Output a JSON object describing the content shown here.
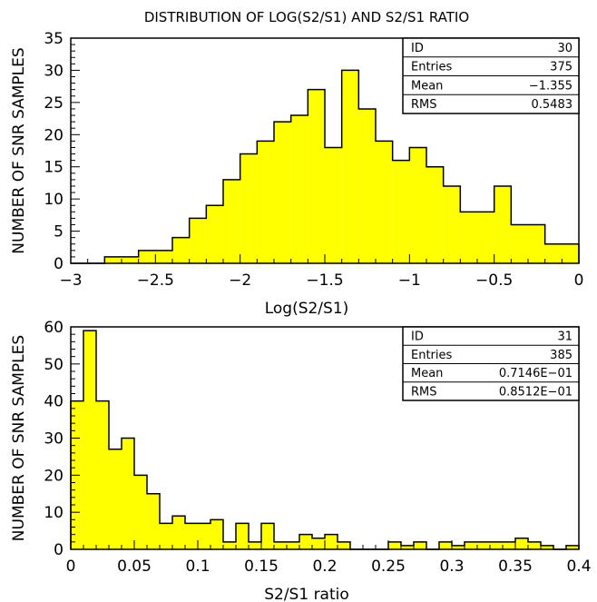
{
  "title": "DISTRIBUTION OF LOG(S2/S1) AND S2/S1 RATIO",
  "colors": {
    "fill": "#ffff00",
    "stroke": "#000000",
    "background": "#ffffff"
  },
  "chart_data": [
    {
      "type": "histogram",
      "xlabel": "Log(S2/S1)",
      "ylabel": "NUMBER OF SNR SAMPLES",
      "xlim": [
        -3,
        0
      ],
      "ylim": [
        0,
        35
      ],
      "x_ticks": [
        -3,
        -2.5,
        -2,
        -1.5,
        -1,
        -0.5,
        0
      ],
      "x_tick_labels": [
        "−3",
        "−2.5",
        "−2",
        "−1.5",
        "−1",
        "−0.5",
        "0"
      ],
      "y_ticks": [
        0,
        5,
        10,
        15,
        20,
        25,
        30,
        35
      ],
      "y_tick_labels": [
        "0",
        "5",
        "10",
        "15",
        "20",
        "25",
        "30",
        "35"
      ],
      "bin_edges_start": -3.0,
      "bin_width": 0.1,
      "counts": [
        0,
        0,
        1,
        1,
        2,
        2,
        4,
        7,
        9,
        13,
        17,
        19,
        22,
        23,
        27,
        18,
        30,
        24,
        19,
        16,
        18,
        15,
        12,
        8,
        8,
        12,
        6,
        6,
        3,
        3
      ],
      "stats": [
        {
          "label": "ID",
          "value": "30"
        },
        {
          "label": "Entries",
          "value": "375"
        },
        {
          "label": "Mean",
          "value": "−1.355"
        },
        {
          "label": "RMS",
          "value": "0.5483"
        }
      ]
    },
    {
      "type": "histogram",
      "xlabel": "S2/S1 ratio",
      "ylabel": "NUMBER OF SNR SAMPLES",
      "xlim": [
        0,
        0.4
      ],
      "ylim": [
        0,
        60
      ],
      "x_ticks": [
        0,
        0.05,
        0.1,
        0.15,
        0.2,
        0.25,
        0.3,
        0.35,
        0.4
      ],
      "x_tick_labels": [
        "0",
        "0.05",
        "0.1",
        "0.15",
        "0.2",
        "0.25",
        "0.3",
        "0.35",
        "0.4"
      ],
      "y_ticks": [
        0,
        10,
        20,
        30,
        40,
        50,
        60
      ],
      "y_tick_labels": [
        "0",
        "10",
        "20",
        "30",
        "40",
        "50",
        "60"
      ],
      "bin_edges_start": 0.0,
      "bin_width": 0.01,
      "counts": [
        40,
        59,
        40,
        27,
        30,
        20,
        15,
        7,
        9,
        7,
        7,
        8,
        2,
        7,
        2,
        7,
        2,
        2,
        4,
        3,
        4,
        2,
        0,
        0,
        0,
        2,
        1,
        2,
        0,
        2,
        1,
        2,
        2,
        2,
        2,
        3,
        2,
        1,
        0,
        1
      ],
      "stats": [
        {
          "label": "ID",
          "value": "31"
        },
        {
          "label": "Entries",
          "value": "385"
        },
        {
          "label": "Mean",
          "value": "0.7146E−01"
        },
        {
          "label": "RMS",
          "value": "0.8512E−01"
        }
      ]
    }
  ]
}
